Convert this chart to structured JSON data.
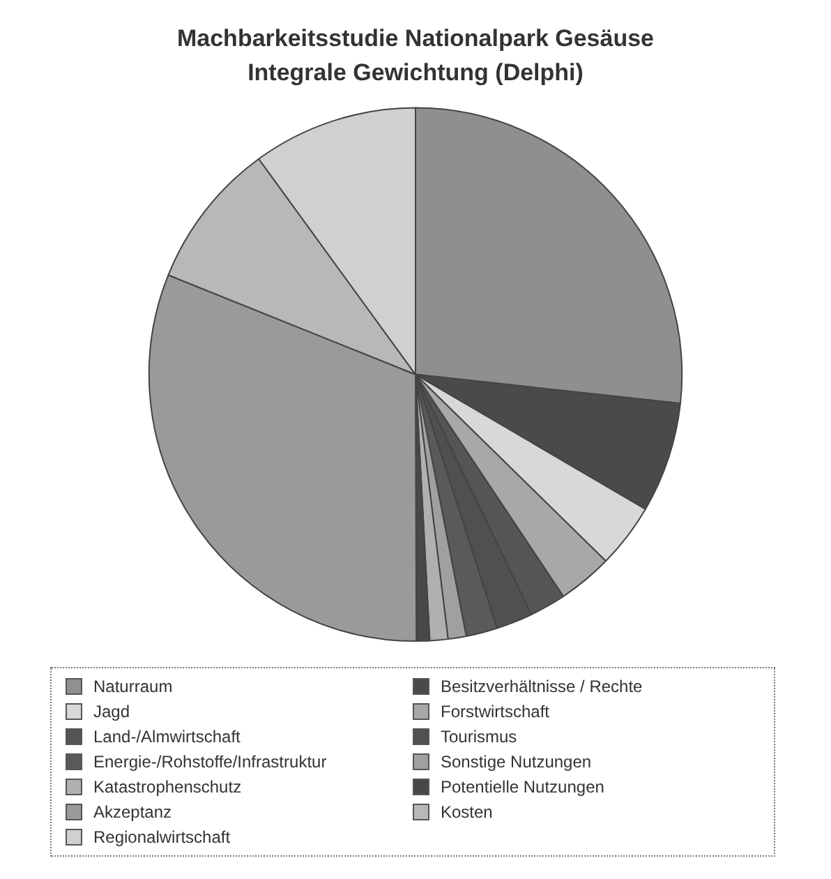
{
  "chart_data": {
    "type": "pie",
    "title": "Machbarkeitsstudie Nationalpark Gesäuse",
    "subtitle": "Integrale Gewichtung (Delphi)",
    "categories": [
      "Naturraum",
      "Besitzverhältnisse / Rechte",
      "Jagd",
      "Forstwirtschaft",
      "Land-/Almwirtschaft",
      "Tourismus",
      "Energie-/Rohstoffe/Infrastruktur",
      "Sonstige Nutzungen",
      "Katastrophenschutz",
      "Potentielle Nutzungen",
      "Akzeptanz",
      "Kosten",
      "Regionalwirtschaft"
    ],
    "values": [
      26.7,
      6.7,
      3.9,
      3.3,
      2.2,
      2.2,
      1.9,
      1.1,
      1.1,
      0.8,
      31.1,
      8.9,
      10
    ],
    "colors": [
      "#8f8f8f",
      "#4a4a4a",
      "#d8d8d8",
      "#a8a8a8",
      "#555555",
      "#505050",
      "#5a5a5a",
      "#a0a0a0",
      "#b0b0b0",
      "#484848",
      "#9a9a9a",
      "#b8b8b8",
      "#d0d0d0"
    ],
    "legend": "bottom"
  }
}
